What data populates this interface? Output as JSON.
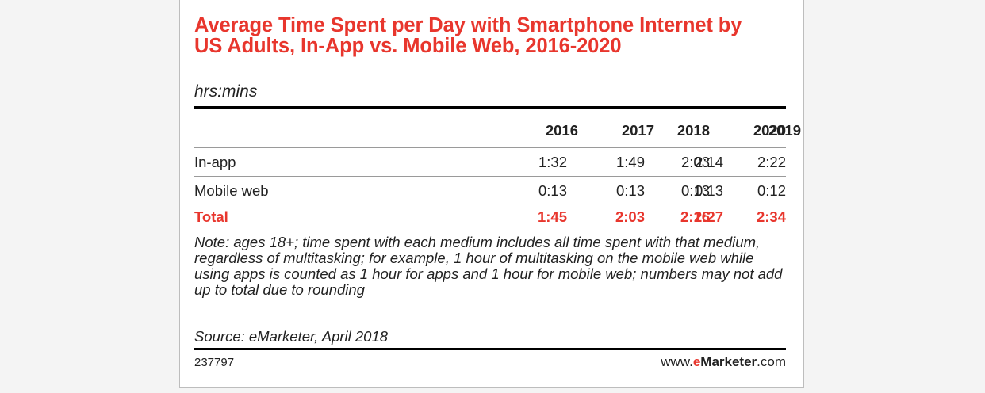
{
  "chart_data": {
    "type": "table",
    "title": "Average Time Spent per Day with Smartphone Internet by US Adults, In-App vs. Mobile Web, 2016-2020",
    "subtitle": "hrs:mins",
    "columns": [
      "2016",
      "2017",
      "2018",
      "2019",
      "2020"
    ],
    "rows": [
      {
        "label": "In-app",
        "values": [
          "1:32",
          "1:49",
          "2:03",
          "2:14",
          "2:22"
        ]
      },
      {
        "label": "Mobile web",
        "values": [
          "0:13",
          "0:13",
          "0:13",
          "0:13",
          "0:12"
        ]
      }
    ],
    "total": {
      "label": "Total",
      "values": [
        "1:45",
        "2:03",
        "2:16",
        "2:27",
        "2:34"
      ]
    },
    "note": "Note: ages 18+; time spent with each medium includes all time spent with that medium, regardless of multitasking; for example, 1 hour of multitasking on the mobile web while using apps is counted as 1 hour for apps and 1 hour for mobile web; numbers may not add up to total due to rounding",
    "source": "Source: eMarketer, April 2018"
  },
  "footer": {
    "chart_id": "237797",
    "brand_prefix": "www.",
    "brand_e": "e",
    "brand_name": "Marketer",
    "brand_suffix": ".com"
  },
  "colors": {
    "accent": "#e8362d",
    "text": "#222222",
    "background": "#f4f4f4",
    "card": "#ffffff"
  }
}
